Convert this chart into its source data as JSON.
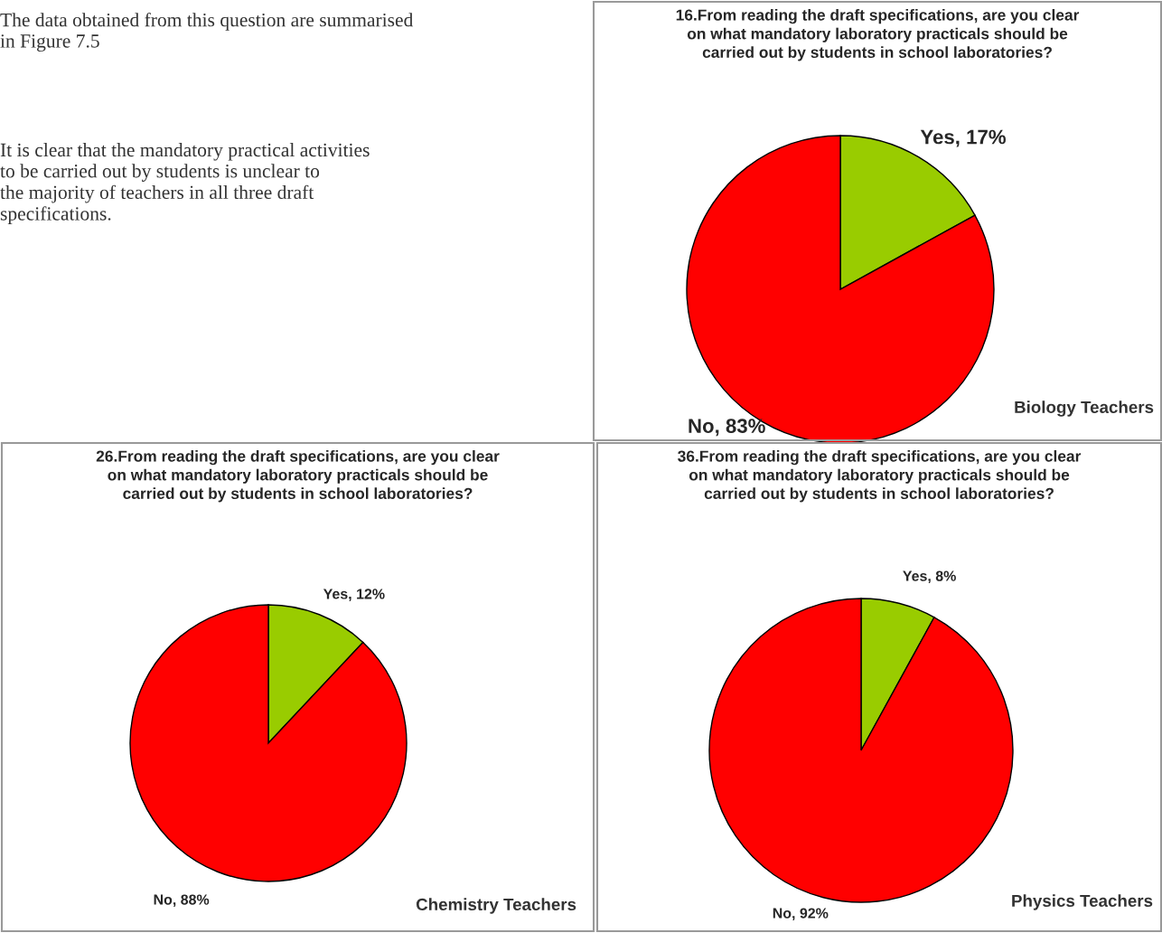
{
  "chart_data": [
    {
      "type": "other",
      "annotations": [
        "The data obtained from this question are summarised\nin Figure 7.5",
        "It is clear that the mandatory practical activities\nto be carried out by students is unclear to\nthe majority of teachers in all three draft\nspecifications."
      ]
    },
    {
      "type": "pie",
      "title": "16.From reading the draft specifications, are you clear\non what mandatory laboratory practicals should be\ncarried out by students in school laboratories?",
      "categories": [
        "Yes",
        "No"
      ],
      "values": [
        17,
        83
      ],
      "colors": [
        "#99cc00",
        "#ff0000"
      ],
      "value_labels": [
        "17%",
        "83%"
      ],
      "annotations": [
        "Biology Teachers"
      ]
    },
    {
      "type": "pie",
      "title": "26.From reading the draft specifications, are you clear\non what mandatory laboratory practicals should be\ncarried out by students in school laboratories?",
      "categories": [
        "Yes",
        "No"
      ],
      "values": [
        12,
        88
      ],
      "colors": [
        "#99cc00",
        "#ff0000"
      ],
      "value_labels": [
        "12%",
        "88%"
      ],
      "annotations": [
        "Chemistry Teachers"
      ]
    },
    {
      "type": "pie",
      "title": "36.From reading the draft specifications, are you clear\non what mandatory laboratory practicals should be\ncarried out by students in school laboratories?",
      "categories": [
        "Yes",
        "No"
      ],
      "values": [
        8,
        92
      ],
      "colors": [
        "#99cc00",
        "#ff0000"
      ],
      "value_labels": [
        "8%",
        "92%"
      ],
      "annotations": [
        "Physics Teachers"
      ]
    }
  ]
}
